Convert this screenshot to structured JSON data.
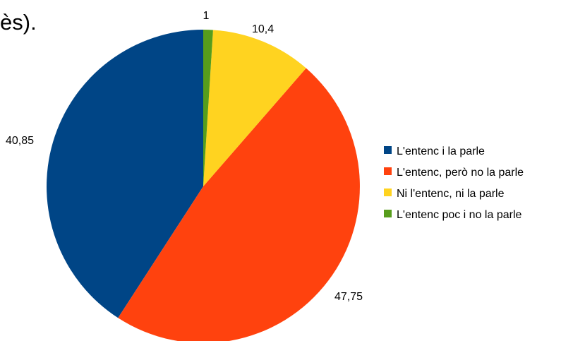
{
  "title_fragment": "ès).",
  "chart_data": {
    "type": "pie",
    "title": "",
    "legend_position": "right",
    "slices": [
      {
        "label": "L'entenc i la parle",
        "value": 40.85,
        "data_label": "40,85",
        "color": "#004586"
      },
      {
        "label": "L'entenc, però no la parle",
        "value": 47.75,
        "data_label": "47,75",
        "color": "#ff420e"
      },
      {
        "label": "Ni l'entenc, ni la parle",
        "value": 10.4,
        "data_label": "10,4",
        "color": "#ffd320"
      },
      {
        "label": "L'entenc poc i no la parle",
        "value": 1,
        "data_label": "1",
        "color": "#579d1c"
      }
    ]
  }
}
